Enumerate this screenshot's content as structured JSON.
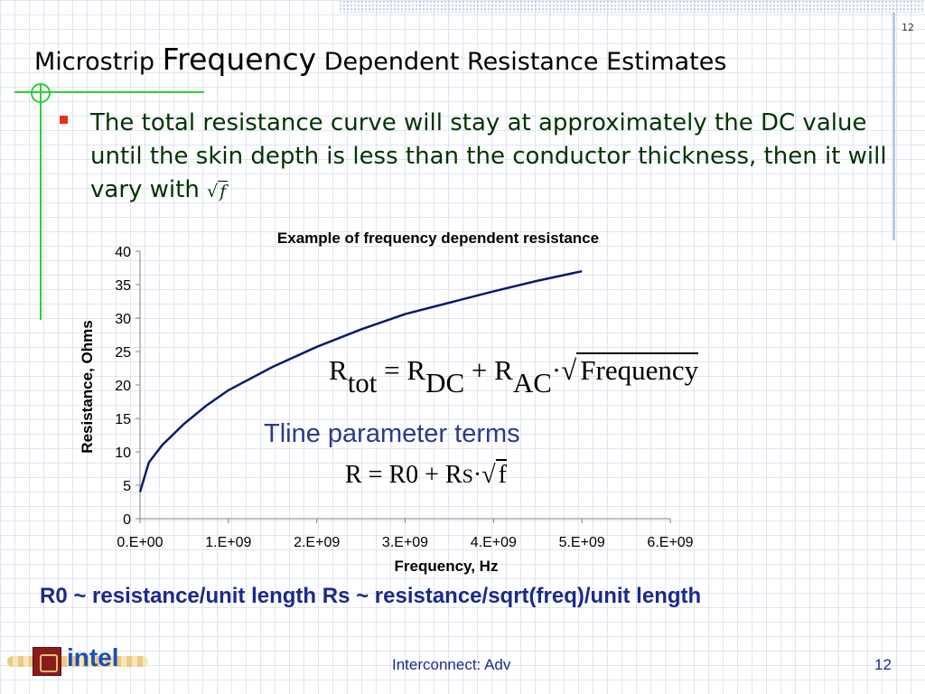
{
  "slide": {
    "page_number_top": "12",
    "title_part1": "Microstrip ",
    "title_part2": "Frequency",
    "title_part3": " Dependent Resistance Estimates",
    "bullet_text": "The total resistance curve will stay at approximately the DC value until the skin depth is less than the conductor thickness, then it will vary with ",
    "bullet_sqrt_var": "f",
    "formula_main": {
      "r1": "R",
      "sub_tot": "tot",
      "eq": " = ",
      "r2": "R",
      "sub_dc": "DC",
      "plus": " + ",
      "r3": "R",
      "sub_ac": "AC",
      "dot": "·",
      "radicand": "Frequency"
    },
    "tline_label": "Tline parameter terms",
    "formula_small": {
      "lhs": "R = R0 + R",
      "sub_s": "S",
      "dot": "·",
      "radicand": "f"
    },
    "note": "R0 ~ resistance/unit length  Rs ~ resistance/sqrt(freq)/unit length",
    "footer_center": "Interconnect: Adv",
    "footer_right": "12",
    "logo_text": "intel"
  },
  "colors": {
    "line": "#0a1a6e",
    "accent_green": "#33cc33",
    "bullet_red": "#e8301c",
    "note_blue": "#1a2a8a"
  },
  "chart_data": {
    "type": "line",
    "title": "Example of frequency dependent resistance",
    "xlabel": "Frequency, Hz",
    "ylabel": "Resistance, Ohms",
    "xlim": [
      0,
      6000000000
    ],
    "ylim": [
      0,
      40
    ],
    "x_tick_labels": [
      "0.E+00",
      "1.E+09",
      "2.E+09",
      "3.E+09",
      "4.E+09",
      "5.E+09",
      "6.E+09"
    ],
    "y_tick_labels": [
      "0",
      "5",
      "10",
      "15",
      "20",
      "25",
      "30",
      "35",
      "40"
    ],
    "series": [
      {
        "x": [
          0,
          100000000,
          250000000,
          500000000,
          750000000,
          1000000000,
          1500000000,
          2000000000,
          2500000000,
          3000000000,
          3500000000,
          4000000000,
          4500000000,
          5000000000
        ],
        "y": [
          4.0,
          8.4,
          11.0,
          14.2,
          16.9,
          19.2,
          22.7,
          25.7,
          28.3,
          30.6,
          32.3,
          34.0,
          35.6,
          37.0
        ]
      }
    ],
    "grid": false,
    "legend": false
  }
}
